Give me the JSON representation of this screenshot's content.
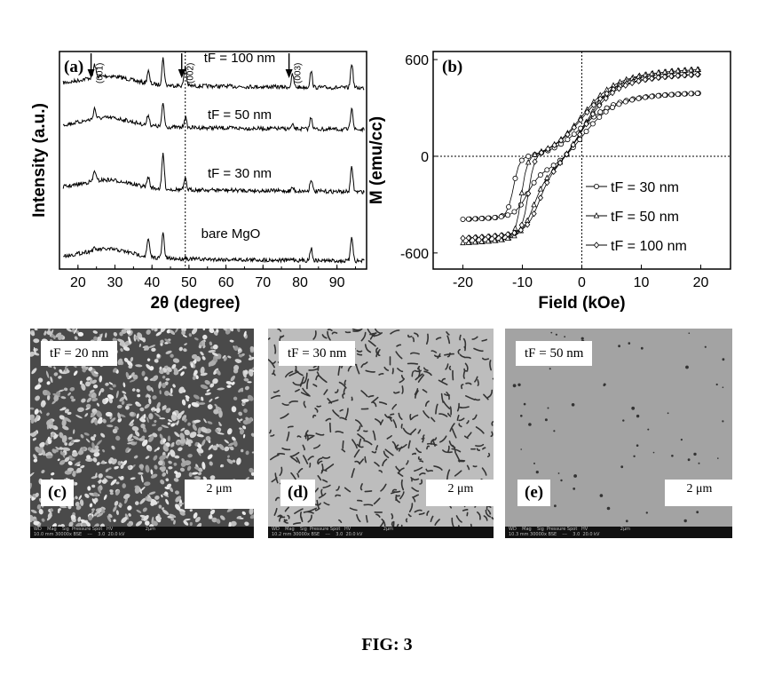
{
  "figure_caption": "FIG: 3",
  "chart_data": [
    {
      "panel": "(a)",
      "type": "line",
      "xlabel": "2θ (degree)",
      "ylabel": "Intensity (a.u.)",
      "xlim": [
        15,
        98
      ],
      "xticks": [
        20,
        30,
        40,
        50,
        60,
        70,
        80,
        90
      ],
      "series": [
        {
          "name": "tF = 100 nm",
          "offset": 3
        },
        {
          "name": "tF = 50 nm",
          "offset": 2
        },
        {
          "name": "tF = 30 nm",
          "offset": 1
        },
        {
          "name": "bare MgO",
          "offset": 0
        }
      ],
      "peaks": [
        24.5,
        39.0,
        43.0,
        49.0,
        78.0,
        83.0,
        94.0
      ],
      "annotations": [
        "(001)",
        "(002)",
        "(003)"
      ],
      "annotation_x": [
        24.5,
        49.0,
        78.0
      ],
      "dashed_line_x": 49.0
    },
    {
      "panel": "(b)",
      "type": "line",
      "xlabel": "Field (kOe)",
      "ylabel": "M (emu/cc)",
      "xlim": [
        -25,
        25
      ],
      "ylim": [
        -700,
        650
      ],
      "xticks": [
        -20,
        -10,
        0,
        10,
        20
      ],
      "yticks": [
        -600,
        0,
        600
      ],
      "series": [
        {
          "name": "tF = 30 nm",
          "marker": "circle",
          "Ms": 400,
          "Hc": 11.5
        },
        {
          "name": "tF = 50 nm",
          "marker": "triangle",
          "Ms": 550,
          "Hc": 10.2
        },
        {
          "name": "tF = 100 nm",
          "marker": "diamond",
          "Ms": 520,
          "Hc": 9.0
        }
      ],
      "legend": "bottom-right"
    }
  ],
  "sem_panels": [
    {
      "letter": "(c)",
      "label": "tF = 20 nm",
      "scale": "2 μm",
      "footer": "WD    Mag    Sig  Pressure Spot   HV                       2μm\n10.0 mm 30000x BSE    ---    3.0  20.0 kV"
    },
    {
      "letter": "(d)",
      "label": "tF = 30 nm",
      "scale": "2 μm",
      "footer": "WD    Mag    Sig  Pressure Spot   HV                       2μm\n10.2 mm 30000x BSE    ---    3.0  20.0 kV"
    },
    {
      "letter": "(e)",
      "label": "tF = 50 nm",
      "scale": "2 μm",
      "footer": "WD    Mag    Sig  Pressure Spot   HV                       2μm\n10.3 mm 30000x BSE    ---    3.0  20.0 kV"
    }
  ],
  "colors": {
    "ink": "#000000",
    "sem_dark": "#2a2a2a",
    "sem_light": "#cfcfcf"
  }
}
